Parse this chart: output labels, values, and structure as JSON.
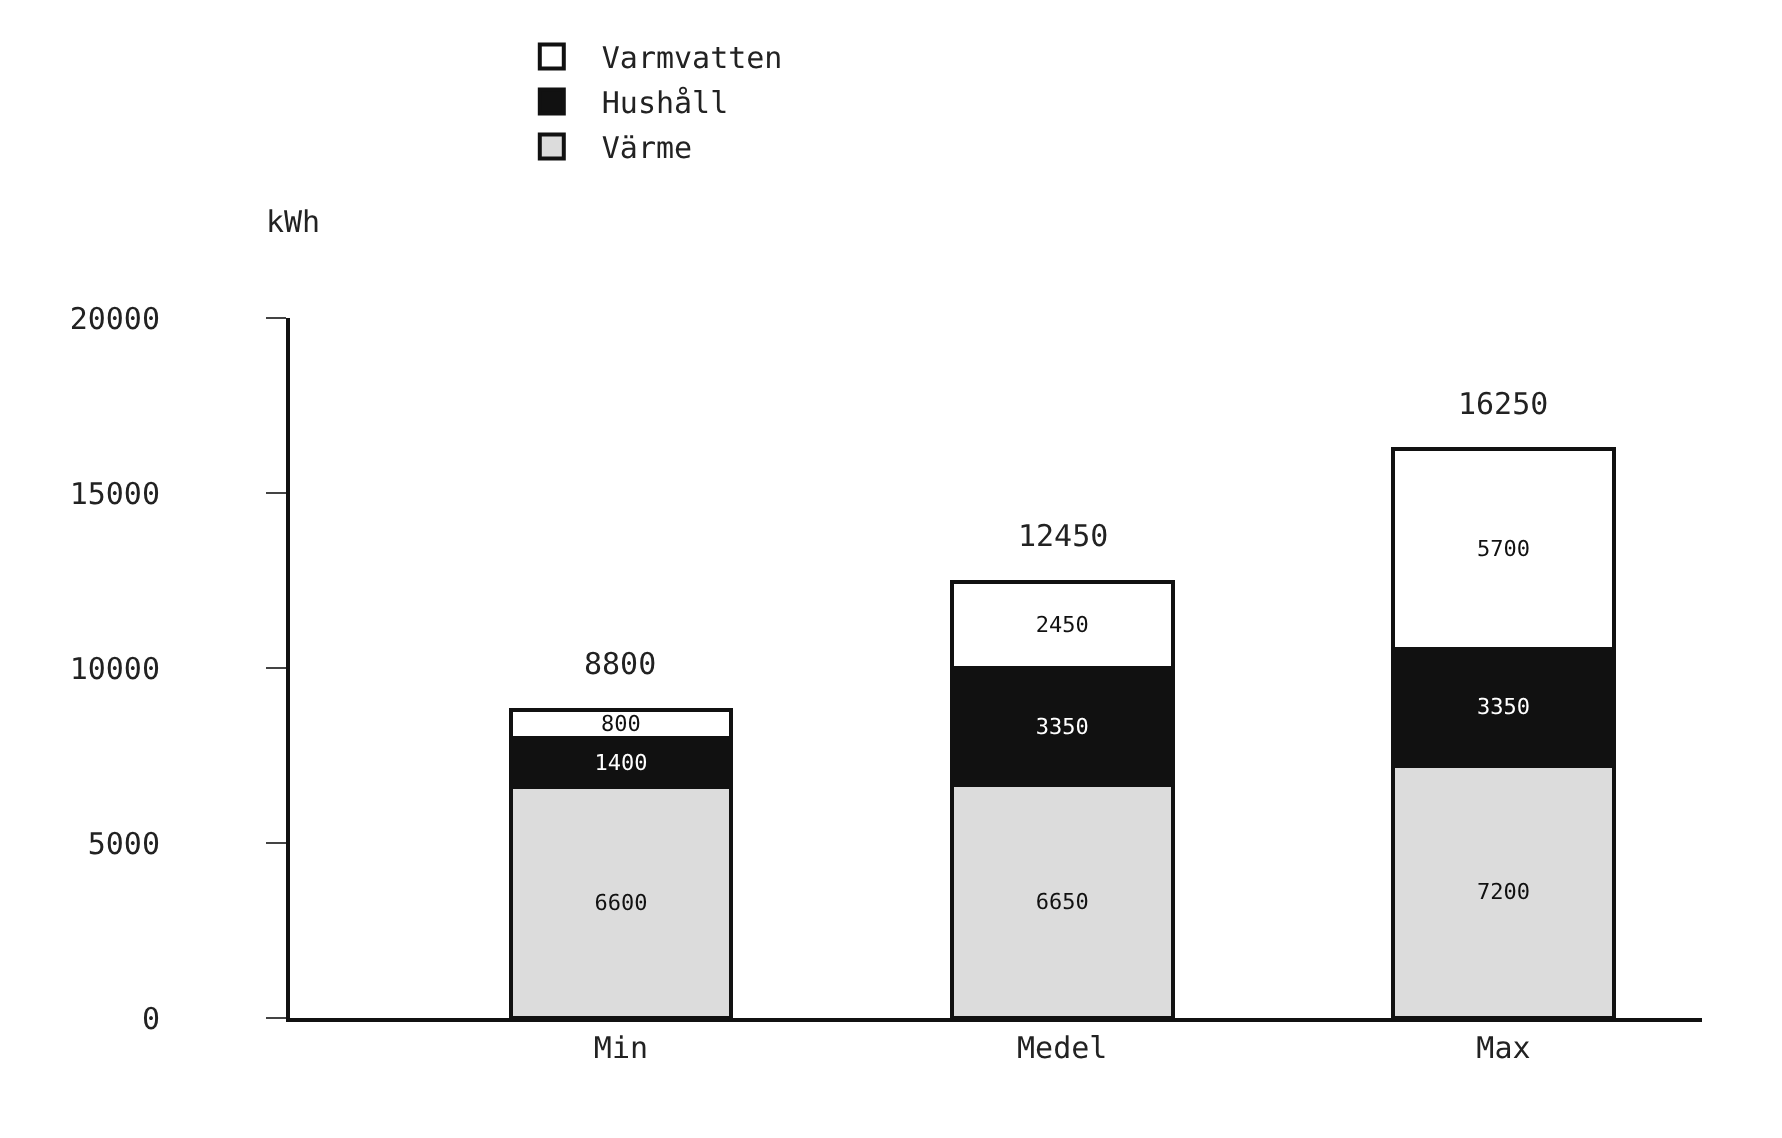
{
  "chart_data": {
    "type": "bar",
    "stacked": true,
    "ylabel": "kWh",
    "categories": [
      "Min",
      "Medel",
      "Max"
    ],
    "series": [
      {
        "name": "Värme",
        "color": "#dcdcdc",
        "values": [
          6600,
          6650,
          7200
        ]
      },
      {
        "name": "Hushåll",
        "color": "#111111",
        "values": [
          1400,
          3350,
          3350
        ]
      },
      {
        "name": "Varmvatten",
        "color": "#ffffff",
        "values": [
          800,
          2450,
          5700
        ]
      }
    ],
    "ylim": [
      0,
      20000
    ],
    "yticks": [
      0,
      5000,
      10000,
      15000,
      20000
    ],
    "data_labels": true,
    "totals": [
      "8800",
      "12450",
      "16250"
    ],
    "legend": "top"
  }
}
